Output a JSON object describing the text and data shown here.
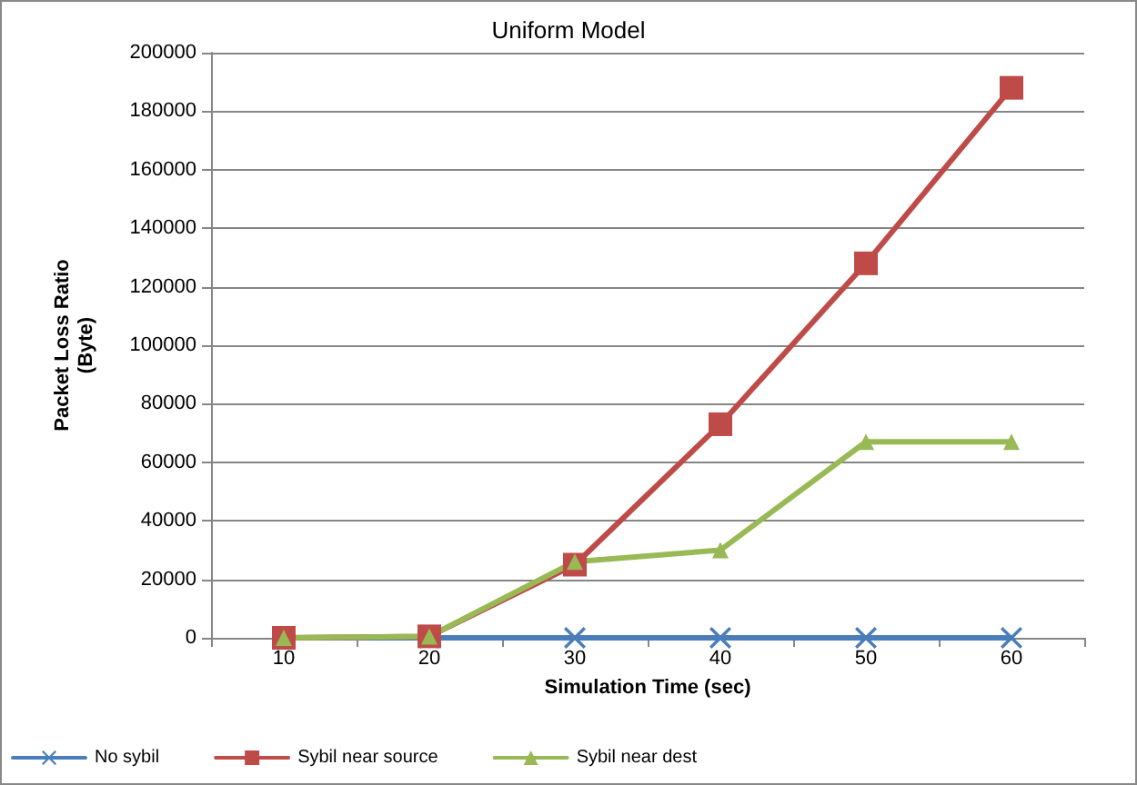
{
  "chart_data": {
    "type": "line",
    "title": "Uniform Model",
    "xlabel": "Simulation Time (sec)",
    "ylabel": "Packet Loss Ratio\n(Byte)",
    "categories": [
      "10",
      "20",
      "30",
      "40",
      "50",
      "60"
    ],
    "series": [
      {
        "name": "No sybil",
        "color": "#4a7ebb",
        "marker": "cross",
        "values": [
          0,
          0,
          0,
          0,
          0,
          0
        ]
      },
      {
        "name": "Sybil near source",
        "color": "#be4b48",
        "marker": "square",
        "values": [
          0,
          500,
          25000,
          73000,
          128000,
          188000
        ]
      },
      {
        "name": "Sybil near dest",
        "color": "#98b954",
        "marker": "triangle",
        "values": [
          0,
          500,
          26000,
          30000,
          67000,
          67000
        ]
      }
    ],
    "ylim": [
      0,
      200000
    ],
    "yticks": [
      0,
      20000,
      40000,
      60000,
      80000,
      100000,
      120000,
      140000,
      160000,
      180000,
      200000
    ],
    "grid": "y",
    "legend": "bottom",
    "line_style": "solid"
  }
}
